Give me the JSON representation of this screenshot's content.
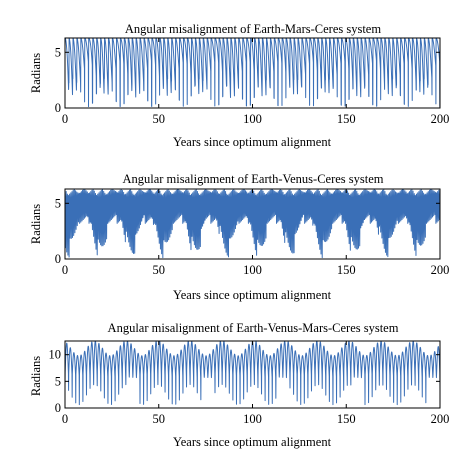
{
  "chart_data": [
    {
      "type": "line",
      "title": "Angular misalignment of Earth-Mars-Ceres system",
      "xlabel": "Years since optimum alignment",
      "ylabel": "Radians",
      "xlim": [
        0,
        200
      ],
      "ylim": [
        0,
        6.283
      ],
      "xticks": [
        0,
        50,
        100,
        150,
        200
      ],
      "yticks": [
        0,
        5
      ],
      "grid": false,
      "series": [
        {
          "color": "#3a6fb7",
          "approximate_envelope": {
            "min": 0,
            "max": 6.28
          },
          "approximate_cycles_over_range": 95
        }
      ]
    },
    {
      "type": "line",
      "title": "Angular misalignment of Earth-Venus-Ceres system",
      "xlabel": "Years since optimum alignment",
      "ylabel": "Radians",
      "xlim": [
        0,
        200
      ],
      "ylim": [
        0,
        6.283
      ],
      "xticks": [
        0,
        50,
        100,
        150,
        200
      ],
      "yticks": [
        0,
        5
      ],
      "grid": false,
      "series": [
        {
          "color": "#3a6fb7",
          "approximate_envelope": {
            "min": 0,
            "max": 6.28
          },
          "approximate_cycles_over_range": 320
        }
      ]
    },
    {
      "type": "line",
      "title": "Angular misalignment of Earth-Venus-Mars-Ceres system",
      "xlabel": "Years since optimum alignment",
      "ylabel": "Radians",
      "xlim": [
        0,
        200
      ],
      "ylim": [
        0,
        12.566
      ],
      "xticks": [
        0,
        50,
        100,
        150,
        200
      ],
      "yticks": [
        0,
        5,
        10
      ],
      "grid": false,
      "series": [
        {
          "color": "#3a6fb7",
          "approximate_envelope": {
            "min": 0,
            "max": 12.57
          },
          "approximate_cycles_over_range": 105
        }
      ]
    }
  ]
}
